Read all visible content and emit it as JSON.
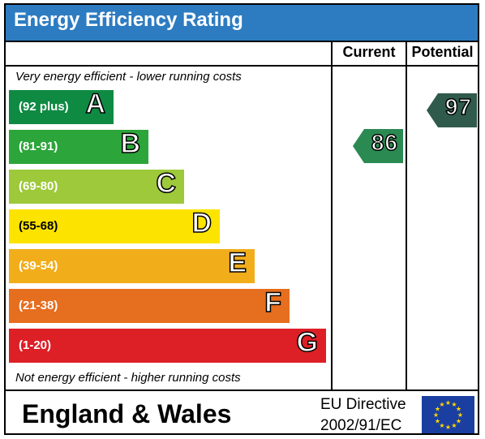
{
  "title": "Energy Efficiency Rating",
  "columns": {
    "current": "Current",
    "potential": "Potential"
  },
  "top_note": "Very energy efficient - lower running costs",
  "bottom_note": "Not energy efficient - higher running costs",
  "bands": [
    {
      "range": "(92 plus)",
      "letter": "A",
      "color": "#0f8a43"
    },
    {
      "range": "(81-91)",
      "letter": "B",
      "color": "#2ca53b"
    },
    {
      "range": "(69-80)",
      "letter": "C",
      "color": "#9dc93a"
    },
    {
      "range": "(55-68)",
      "letter": "D",
      "color": "#fde400"
    },
    {
      "range": "(39-54)",
      "letter": "E",
      "color": "#f2ad1a"
    },
    {
      "range": "(21-38)",
      "letter": "F",
      "color": "#e66e1f"
    },
    {
      "range": "(1-20)",
      "letter": "G",
      "color": "#dd1f26"
    }
  ],
  "current": {
    "value": "86",
    "band": "B",
    "color": "#2a8a52"
  },
  "potential": {
    "value": "97",
    "band": "A",
    "color": "#2f5a4c"
  },
  "footer": {
    "region": "England & Wales",
    "directive_line1": "EU Directive",
    "directive_line2": "2002/91/EC"
  },
  "colors": {
    "title_bar": "#2d7cc1",
    "eu_flag": "#1b3fa0",
    "eu_stars": "#ffd800"
  }
}
